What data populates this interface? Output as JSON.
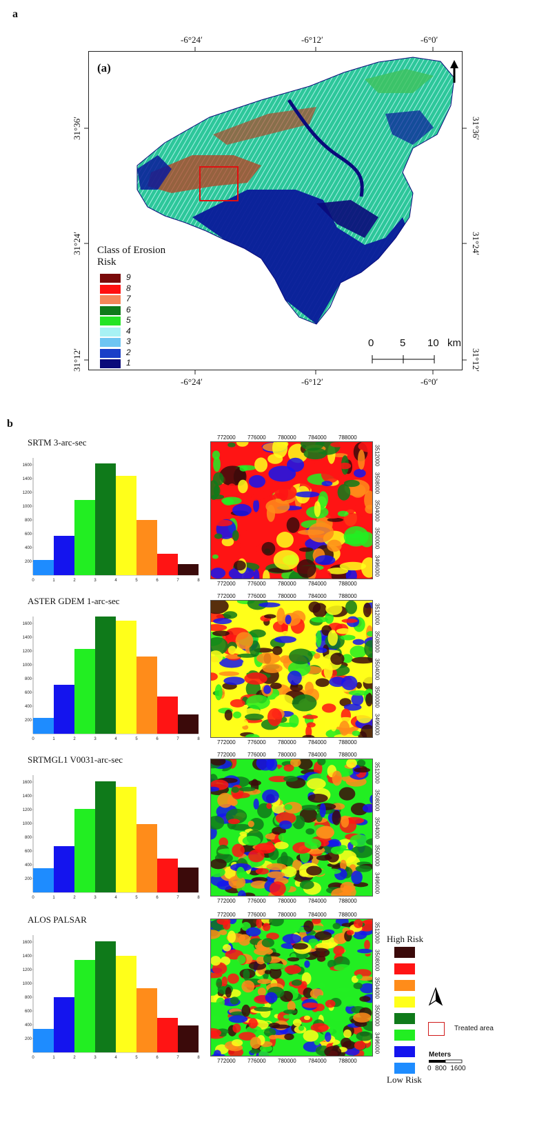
{
  "panel_a": {
    "letter": "a",
    "subfigure_label": "(a)",
    "lon_labels": [
      "-6°24′",
      "-6°12′",
      "-6°0′"
    ],
    "lat_labels": [
      "31°36′",
      "31°24′",
      "31°12′"
    ],
    "legend_title_line1": "Class of Erosion",
    "legend_title_line2": "Risk",
    "legend": [
      {
        "label": "9",
        "color": "#7a0a0a"
      },
      {
        "label": "8",
        "color": "#ff1010"
      },
      {
        "label": "7",
        "color": "#f5865a"
      },
      {
        "label": "6",
        "color": "#0f7a1a"
      },
      {
        "label": "5",
        "color": "#24e424"
      },
      {
        "label": "4",
        "color": "#a8f2f4"
      },
      {
        "label": "3",
        "color": "#6ec5f2"
      },
      {
        "label": "2",
        "color": "#1a3fc8"
      },
      {
        "label": "1",
        "color": "#0a0a7a"
      }
    ],
    "scale_labels": [
      "0",
      "5",
      "10",
      "km"
    ]
  },
  "panel_b": {
    "letter": "b",
    "easting_ticks": [
      "772000",
      "776000",
      "780000",
      "784000",
      "788000"
    ],
    "northing_ticks": [
      "3512000",
      "3508000",
      "3504000",
      "3500000",
      "3496000"
    ],
    "hist_y_ticks": [
      "200",
      "400",
      "600",
      "800",
      "1000",
      "1200",
      "1400",
      "1600"
    ],
    "hist_x_ticks": [
      "0",
      "1",
      "2",
      "3",
      "4",
      "5",
      "6",
      "7",
      "8"
    ],
    "risk_legend": {
      "high": "High Risk",
      "low": "Low Risk",
      "colors": [
        "#3b0a0a",
        "#ff1414",
        "#ff8c1a",
        "#ffff1a",
        "#0f7a1a",
        "#22ee22",
        "#1414ee",
        "#1e8cff"
      ],
      "treated_area": "Treated area",
      "meters_label": "Meters",
      "meters_scale": "0  800  1600"
    }
  },
  "chart_data": [
    {
      "type": "bar",
      "title": "SRTM 3-arc-sec",
      "categories": [
        "1",
        "2",
        "3",
        "4",
        "5",
        "6",
        "7",
        "8"
      ],
      "values": [
        220,
        570,
        1090,
        1620,
        1440,
        800,
        310,
        160
      ],
      "colors": [
        "#1e8cff",
        "#1414ee",
        "#22ee22",
        "#0f7a1a",
        "#ffff1a",
        "#ff8c1a",
        "#ff1414",
        "#3b0a0a"
      ],
      "ylim": [
        0,
        1700
      ]
    },
    {
      "type": "bar",
      "title": "ASTER GDEM 1-arc-sec",
      "categories": [
        "1",
        "2",
        "3",
        "4",
        "5",
        "6",
        "7",
        "8"
      ],
      "values": [
        230,
        710,
        1230,
        1700,
        1640,
        1120,
        540,
        280
      ],
      "colors": [
        "#1e8cff",
        "#1414ee",
        "#22ee22",
        "#0f7a1a",
        "#ffff1a",
        "#ff8c1a",
        "#ff1414",
        "#3b0a0a"
      ],
      "ylim": [
        0,
        1700
      ]
    },
    {
      "type": "bar",
      "title": "SRTMGL1 V0031-arc-sec",
      "categories": [
        "1",
        "2",
        "3",
        "4",
        "5",
        "6",
        "7",
        "8"
      ],
      "values": [
        350,
        670,
        1210,
        1610,
        1530,
        990,
        490,
        360
      ],
      "colors": [
        "#1e8cff",
        "#1414ee",
        "#22ee22",
        "#0f7a1a",
        "#ffff1a",
        "#ff8c1a",
        "#ff1414",
        "#3b0a0a"
      ],
      "ylim": [
        0,
        1700
      ]
    },
    {
      "type": "bar",
      "title": "ALOS PALSAR",
      "categories": [
        "1",
        "2",
        "3",
        "4",
        "5",
        "6",
        "7",
        "8"
      ],
      "values": [
        340,
        800,
        1340,
        1610,
        1400,
        930,
        500,
        390
      ],
      "colors": [
        "#1e8cff",
        "#1414ee",
        "#22ee22",
        "#0f7a1a",
        "#ffff1a",
        "#ff8c1a",
        "#ff1414",
        "#3b0a0a"
      ],
      "ylim": [
        0,
        1700
      ]
    }
  ]
}
